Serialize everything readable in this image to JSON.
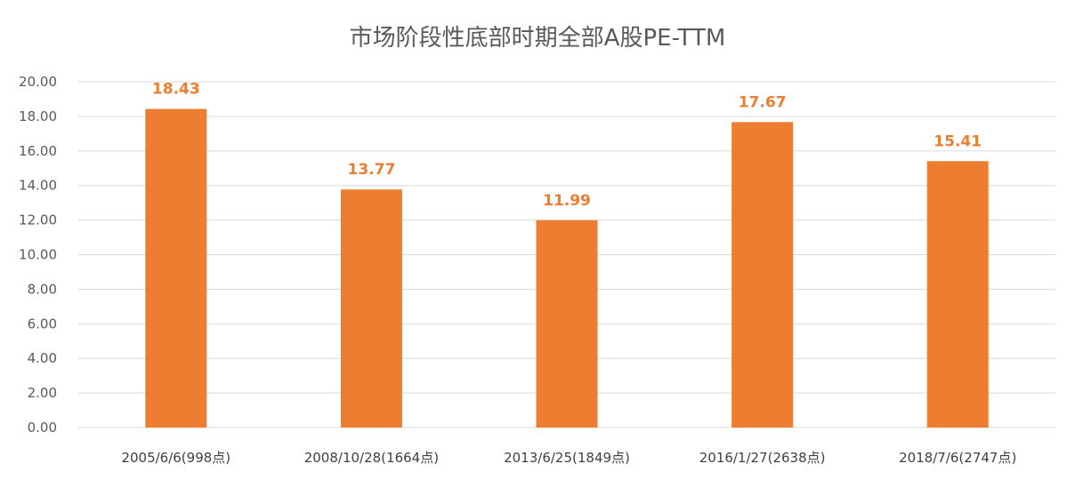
{
  "chart_data": {
    "type": "bar",
    "title": "市场阶段性底部时期全部A股PE-TTM",
    "xlabel": "",
    "ylabel": "",
    "categories": [
      "2005/6/6(998点)",
      "2008/10/28(1664点)",
      "2013/6/25(1849点)",
      "2016/1/27(2638点)",
      "2018/7/6(2747点)"
    ],
    "values": [
      18.43,
      13.77,
      11.99,
      17.67,
      15.41
    ],
    "value_labels": [
      "18.43",
      "13.77",
      "11.99",
      "17.67",
      "15.41"
    ],
    "ylim": [
      0,
      20
    ],
    "y_ticks": [
      "0.00",
      "2.00",
      "4.00",
      "6.00",
      "8.00",
      "10.00",
      "12.00",
      "14.00",
      "16.00",
      "18.00",
      "20.00"
    ],
    "grid": true,
    "legend": "none",
    "colors": {
      "bar": "#ED7D31",
      "value_label": "#ED7D31",
      "grid": "#D9D9D9"
    }
  }
}
